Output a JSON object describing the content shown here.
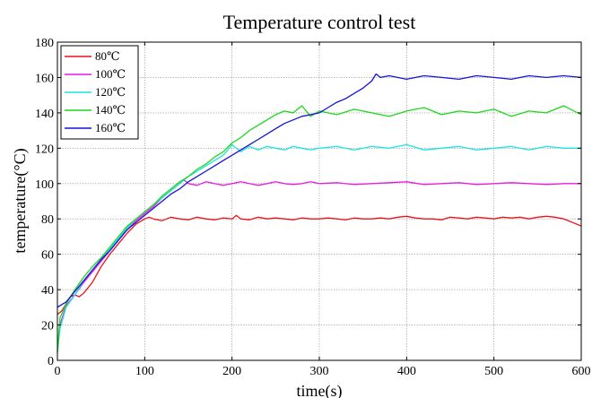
{
  "chart_data": {
    "type": "line",
    "title": "Temperature control test",
    "xlabel": "time(s)",
    "ylabel": "temperature(°C)",
    "xlim": [
      0,
      600
    ],
    "ylim": [
      0,
      180
    ],
    "xticks": [
      0,
      100,
      200,
      300,
      400,
      500,
      600
    ],
    "yticks": [
      0,
      20,
      40,
      60,
      80,
      100,
      120,
      140,
      160,
      180
    ],
    "grid": true,
    "legend_position": "top-left",
    "series": [
      {
        "name": "80℃",
        "color": "#e8141c",
        "x": [
          0,
          5,
          10,
          15,
          20,
          25,
          30,
          40,
          50,
          60,
          70,
          80,
          90,
          100,
          105,
          110,
          120,
          130,
          140,
          150,
          160,
          170,
          180,
          190,
          200,
          205,
          210,
          220,
          230,
          240,
          250,
          260,
          270,
          280,
          290,
          300,
          310,
          320,
          330,
          340,
          350,
          360,
          370,
          380,
          390,
          400,
          410,
          420,
          430,
          440,
          450,
          460,
          470,
          480,
          490,
          500,
          510,
          520,
          530,
          540,
          550,
          560,
          570,
          580,
          590,
          600
        ],
        "y": [
          26,
          28,
          32,
          36,
          37,
          36,
          38,
          44,
          53,
          60,
          66,
          72,
          77,
          80,
          81,
          80,
          79,
          81,
          80,
          79.5,
          81,
          80,
          79.5,
          80.5,
          80,
          82,
          80,
          79.5,
          81,
          80,
          80.5,
          80,
          79.5,
          80.5,
          80,
          80,
          80.5,
          80,
          79.5,
          80.5,
          80,
          80,
          80.5,
          80,
          81,
          81.5,
          80.5,
          80,
          80,
          79.5,
          81,
          80.5,
          80,
          81,
          80.5,
          80,
          81,
          80.5,
          81,
          80,
          81,
          81.5,
          81,
          80,
          78,
          76
        ]
      },
      {
        "name": "100℃",
        "color": "#e81ce0",
        "x": [
          0,
          3,
          10,
          20,
          30,
          40,
          50,
          60,
          70,
          80,
          90,
          100,
          110,
          120,
          130,
          140,
          145,
          150,
          160,
          170,
          180,
          190,
          200,
          210,
          220,
          230,
          240,
          250,
          260,
          270,
          280,
          290,
          300,
          320,
          340,
          360,
          380,
          400,
          420,
          440,
          460,
          480,
          500,
          520,
          540,
          560,
          580,
          600
        ],
        "y": [
          5,
          20,
          31,
          37,
          44,
          50,
          56,
          62,
          68,
          74,
          79,
          83,
          87,
          92,
          96,
          100,
          102,
          100,
          99,
          101,
          100,
          99,
          100,
          101,
          100,
          99,
          100,
          101,
          100,
          99.5,
          100,
          101,
          100,
          100.5,
          99.5,
          100,
          100.5,
          101,
          99.5,
          100,
          100.5,
          99.5,
          100,
          100.5,
          100,
          99.5,
          100,
          100
        ]
      },
      {
        "name": "120℃",
        "color": "#1ce4e4",
        "x": [
          0,
          3,
          10,
          20,
          30,
          40,
          50,
          60,
          70,
          80,
          90,
          100,
          110,
          120,
          130,
          140,
          150,
          160,
          170,
          180,
          190,
          200,
          210,
          220,
          230,
          240,
          250,
          260,
          270,
          280,
          290,
          300,
          320,
          340,
          360,
          380,
          400,
          420,
          440,
          460,
          480,
          500,
          520,
          540,
          560,
          580,
          600
        ],
        "y": [
          4,
          18,
          30,
          37,
          45,
          51,
          57,
          63,
          69,
          75,
          80,
          84,
          88,
          92,
          96,
          100,
          104,
          107,
          110,
          113,
          116,
          122,
          118,
          121,
          119,
          121,
          120,
          119,
          121,
          120,
          119,
          120,
          121,
          119,
          121,
          120,
          122,
          119,
          120,
          121,
          119,
          120,
          121,
          119,
          121,
          120,
          120
        ]
      },
      {
        "name": "140℃",
        "color": "#1cd81c",
        "x": [
          0,
          3,
          10,
          20,
          30,
          40,
          50,
          60,
          70,
          80,
          90,
          100,
          110,
          120,
          130,
          140,
          150,
          160,
          170,
          180,
          190,
          200,
          210,
          220,
          230,
          240,
          250,
          260,
          270,
          280,
          290,
          300,
          320,
          340,
          360,
          380,
          400,
          420,
          440,
          460,
          480,
          500,
          520,
          540,
          560,
          580,
          600
        ],
        "y": [
          5,
          24,
          32,
          40,
          47,
          53,
          58,
          64,
          70,
          76,
          80,
          84,
          88,
          93,
          97,
          101,
          104,
          108,
          111,
          115,
          118,
          123,
          126,
          130,
          133,
          136,
          139,
          141,
          140,
          144,
          138,
          141,
          139,
          142,
          140,
          138,
          141,
          143,
          139,
          141,
          140,
          142,
          138,
          141,
          140,
          144,
          139
        ]
      },
      {
        "name": "160℃",
        "color": "#1414d8",
        "x": [
          0,
          3,
          10,
          20,
          30,
          40,
          50,
          60,
          70,
          80,
          90,
          100,
          110,
          120,
          130,
          140,
          150,
          160,
          170,
          180,
          190,
          200,
          210,
          220,
          230,
          240,
          250,
          260,
          270,
          280,
          290,
          300,
          310,
          320,
          330,
          340,
          350,
          360,
          365,
          370,
          380,
          400,
          420,
          440,
          460,
          480,
          500,
          520,
          540,
          560,
          580,
          600
        ],
        "y": [
          30,
          31,
          33,
          39,
          45,
          51,
          57,
          62,
          68,
          74,
          78,
          82,
          86,
          90,
          94,
          97,
          101,
          104,
          107,
          110,
          113,
          116,
          119,
          122,
          125,
          128,
          131,
          134,
          136,
          138,
          139,
          140,
          143,
          146,
          148,
          151,
          154,
          158,
          162,
          160,
          161,
          159,
          161,
          160,
          159,
          161,
          160,
          159,
          161,
          160,
          161,
          160
        ]
      }
    ]
  }
}
